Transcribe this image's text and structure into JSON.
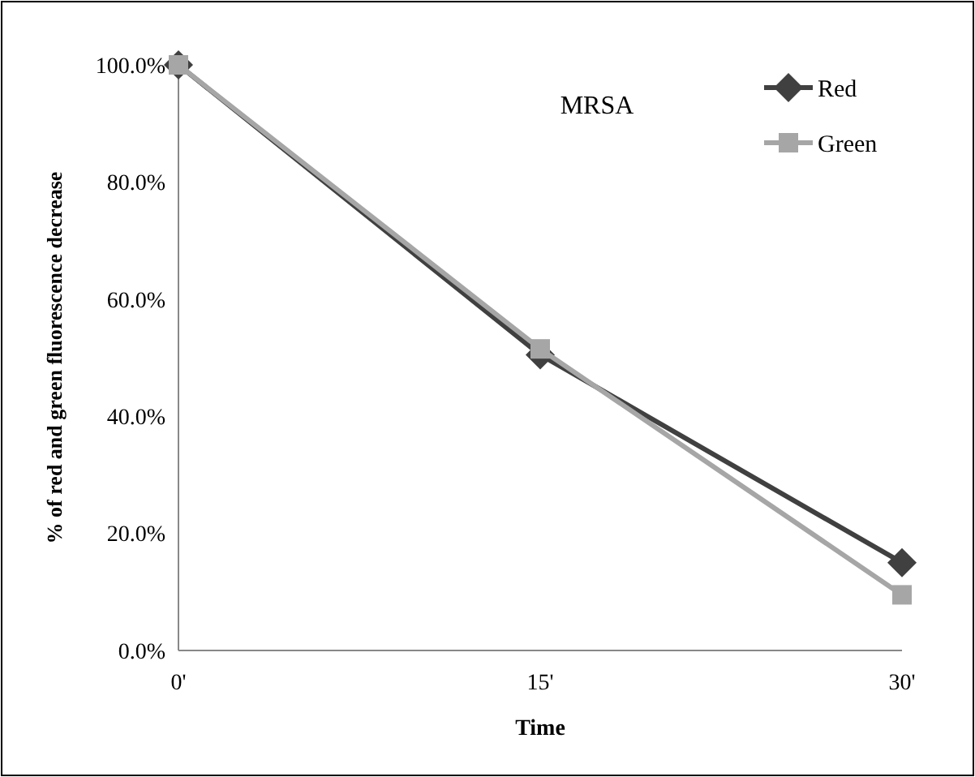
{
  "chart_data": {
    "type": "line",
    "title": "MRSA",
    "xlabel": "Time",
    "ylabel": "% of red and green fluorescence decrease",
    "categories": [
      "0'",
      "15'",
      "30'"
    ],
    "series": [
      {
        "name": "Red",
        "color": "#404040",
        "marker": "diamond",
        "values": [
          100,
          50.5,
          15
        ]
      },
      {
        "name": "Green",
        "color": "#a6a6a6",
        "marker": "square",
        "values": [
          100,
          51.5,
          9.5
        ]
      }
    ],
    "ylim": [
      0,
      100
    ],
    "yticks": [
      {
        "value": 0,
        "label": "0.0%"
      },
      {
        "value": 20,
        "label": "20.0%"
      },
      {
        "value": 40,
        "label": "40.0%"
      },
      {
        "value": 60,
        "label": "60.0%"
      },
      {
        "value": 80,
        "label": "80.0%"
      },
      {
        "value": 100,
        "label": "100.0%"
      }
    ],
    "legend": "top right",
    "grid": false
  }
}
